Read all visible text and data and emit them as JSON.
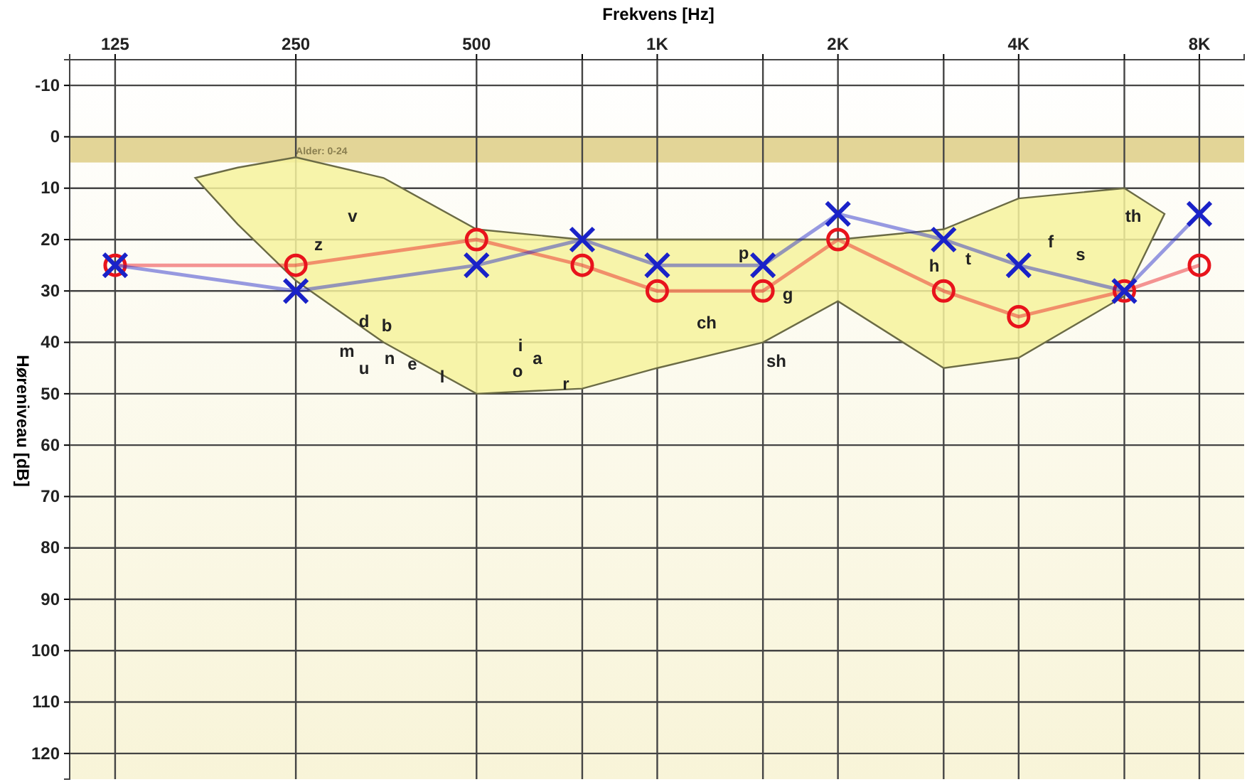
{
  "chart_data": {
    "type": "line",
    "xlabel": "Frekvens [Hz]",
    "ylabel": "Høreniveau [dB]",
    "log": "x",
    "xlim": [
      105,
      9500
    ],
    "xticks": [
      125,
      250,
      500,
      {
        "value": 750,
        "label": null
      },
      {
        "value": 1000,
        "label": "1K"
      },
      {
        "value": 1500,
        "label": null
      },
      {
        "value": 2000,
        "label": "2K"
      },
      {
        "value": 3000,
        "label": null
      },
      {
        "value": 4000,
        "label": "4K"
      },
      {
        "value": 6000,
        "label": null
      },
      {
        "value": 8000,
        "label": "8K"
      }
    ],
    "ylim": [
      125,
      -15
    ],
    "yticks": [
      -10,
      0,
      10,
      20,
      30,
      40,
      50,
      60,
      70,
      80,
      90,
      100,
      110,
      120
    ],
    "grid": true,
    "series": [
      {
        "color": "#f6f29c",
        "marker": "none",
        "x": [
          170,
          200,
          250,
          350,
          500,
          750,
          1000,
          1500,
          2000,
          3000,
          4000,
          6000,
          7000
        ],
        "values": [
          null,
          null,
          null,
          null,
          null,
          null,
          null,
          null,
          null,
          null,
          null,
          null,
          null
        ],
        "upper": [
          8,
          6,
          4,
          8,
          18,
          20,
          20,
          20,
          20,
          18,
          12,
          10,
          15
        ],
        "lower": [
          8,
          17,
          28,
          40,
          50,
          49,
          45,
          40,
          32,
          45,
          43,
          31,
          15
        ]
      },
      {
        "color": "#e8141c",
        "marker": "circle",
        "x": [
          125,
          250,
          500,
          750,
          1000,
          1500,
          2000,
          3000,
          4000,
          6000,
          8000
        ],
        "values": [
          25,
          25,
          20,
          25,
          30,
          30,
          20,
          30,
          35,
          30,
          25
        ]
      },
      {
        "color": "#1a22c8",
        "marker": "cross",
        "x": [
          125,
          250,
          500,
          750,
          1000,
          1500,
          2000,
          3000,
          4000,
          6000,
          8000
        ],
        "values": [
          25,
          30,
          25,
          20,
          25,
          25,
          15,
          20,
          25,
          30,
          15
        ]
      }
    ],
    "bands": [
      {
        "axis": "y",
        "from": 0,
        "to": 5,
        "label": "Alder: 0-24",
        "color": "#dccb7e"
      }
    ],
    "annotations": [
      "v",
      "z",
      "d",
      "b",
      "m",
      "n",
      "u",
      "e",
      "l",
      "i",
      "o",
      "a",
      "r",
      "p",
      "ch",
      "sh",
      "g",
      "h",
      "t",
      "f",
      "s",
      "th"
    ]
  }
}
